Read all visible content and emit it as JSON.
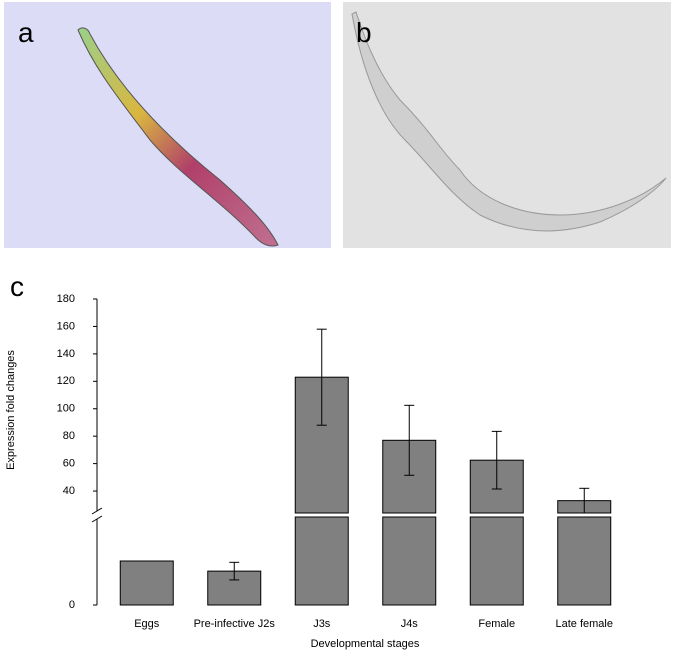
{
  "panel_labels": [
    "a",
    "b",
    "c"
  ],
  "chart_data": {
    "type": "broken_bar",
    "y_label": "Expression fold changes",
    "x_label": "Developmental stages",
    "categories": [
      "Eggs",
      "Pre-infective J2s",
      "J3s",
      "J4s",
      "Female",
      "Late female"
    ],
    "values": [
      1,
      0.77,
      123,
      77,
      62.5,
      33
    ],
    "errors": [
      0,
      0.2,
      35,
      25.5,
      21,
      9
    ],
    "color": "#808080",
    "ylim_lower": [
      0,
      2
    ],
    "ylim_upper": [
      24,
      180
    ],
    "yticks": [
      0,
      40,
      60,
      80,
      100,
      120,
      140,
      160,
      180
    ]
  }
}
